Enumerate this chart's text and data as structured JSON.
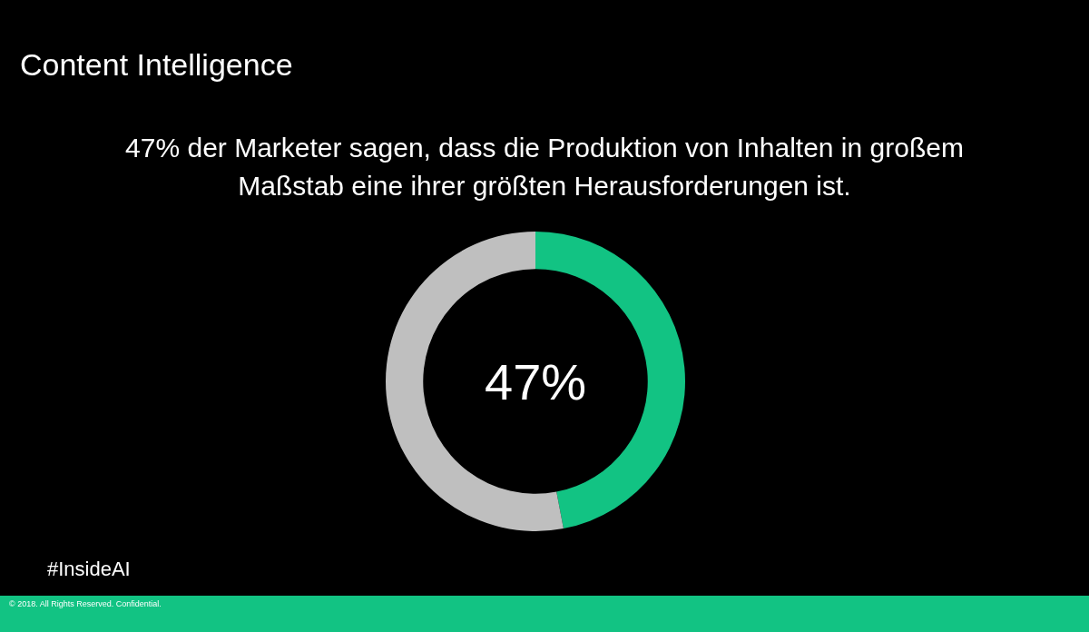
{
  "chart_data": {
    "type": "donut",
    "title": "Content Intelligence",
    "subtitle": "47% der Marketer sagen, dass die Produktion von Inhalten in großem Maßstab eine ihrer größten Herausforderungen ist.",
    "categories": [
      null,
      null
    ],
    "values": [
      47,
      53
    ],
    "colors": [
      "#12c383",
      "#bfbfbf"
    ],
    "annotations": [
      "47%",
      "#InsideAI",
      "© 2018. All Rights Reserved. Confidential."
    ]
  }
}
